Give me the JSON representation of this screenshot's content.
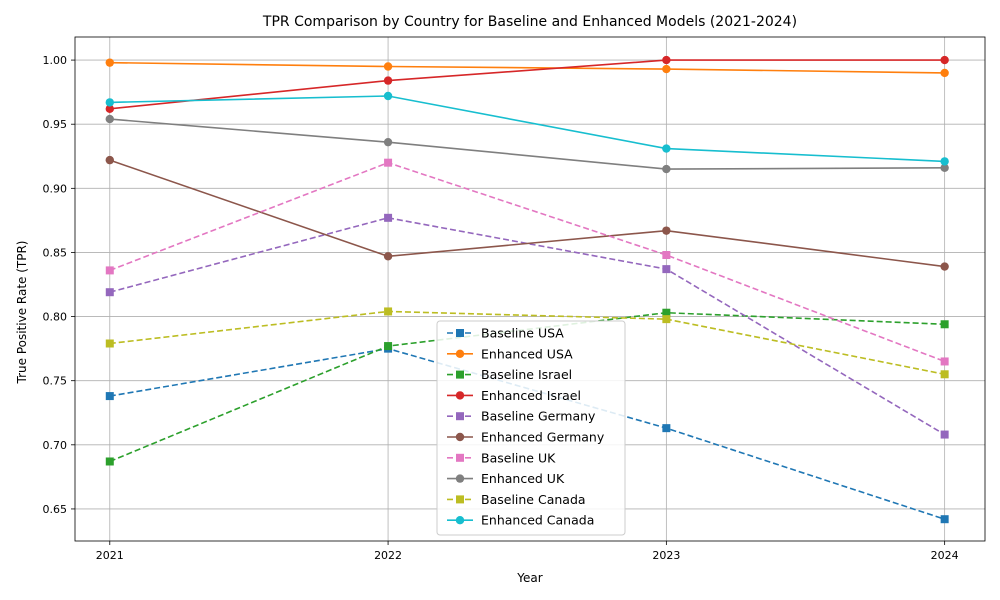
{
  "chart_data": {
    "type": "line",
    "title": "TPR Comparison by Country for Baseline and Enhanced Models (2021-2024)",
    "xlabel": "Year",
    "ylabel": "True Positive Rate (TPR)",
    "x": [
      2021,
      2022,
      2023,
      2024
    ],
    "x_tick_labels": [
      "2021",
      "2022",
      "2023",
      "2024"
    ],
    "ylim": [
      0.625,
      1.018
    ],
    "y_ticks": [
      0.65,
      0.7,
      0.75,
      0.8,
      0.85,
      0.9,
      0.95,
      1.0
    ],
    "y_tick_labels": [
      "0.65",
      "0.70",
      "0.75",
      "0.80",
      "0.85",
      "0.90",
      "0.95",
      "1.00"
    ],
    "grid": true,
    "legend_position": "lower-center",
    "series": [
      {
        "name": "Baseline USA",
        "values": [
          0.738,
          0.775,
          0.713,
          0.642
        ],
        "color": "#1f77b4",
        "style": "dashed",
        "marker": "square"
      },
      {
        "name": "Enhanced USA",
        "values": [
          0.998,
          0.995,
          0.993,
          0.99
        ],
        "color": "#ff7f0e",
        "style": "solid",
        "marker": "circle"
      },
      {
        "name": "Baseline Israel",
        "values": [
          0.687,
          0.777,
          0.803,
          0.794
        ],
        "color": "#2ca02c",
        "style": "dashed",
        "marker": "square"
      },
      {
        "name": "Enhanced Israel",
        "values": [
          0.962,
          0.984,
          1.0,
          1.0
        ],
        "color": "#d62728",
        "style": "solid",
        "marker": "circle"
      },
      {
        "name": "Baseline Germany",
        "values": [
          0.819,
          0.877,
          0.837,
          0.708
        ],
        "color": "#9467bd",
        "style": "dashed",
        "marker": "square"
      },
      {
        "name": "Enhanced Germany",
        "values": [
          0.922,
          0.847,
          0.867,
          0.839
        ],
        "color": "#8c564b",
        "style": "solid",
        "marker": "circle"
      },
      {
        "name": "Baseline UK",
        "values": [
          0.836,
          0.92,
          0.848,
          0.765
        ],
        "color": "#e377c2",
        "style": "dashed",
        "marker": "square"
      },
      {
        "name": "Enhanced UK",
        "values": [
          0.954,
          0.936,
          0.915,
          0.916
        ],
        "color": "#7f7f7f",
        "style": "solid",
        "marker": "circle"
      },
      {
        "name": "Baseline Canada",
        "values": [
          0.779,
          0.804,
          0.798,
          0.755
        ],
        "color": "#bcbd22",
        "style": "dashed",
        "marker": "square"
      },
      {
        "name": "Enhanced Canada",
        "values": [
          0.967,
          0.972,
          0.931,
          0.921
        ],
        "color": "#17becf",
        "style": "solid",
        "marker": "circle"
      }
    ]
  }
}
